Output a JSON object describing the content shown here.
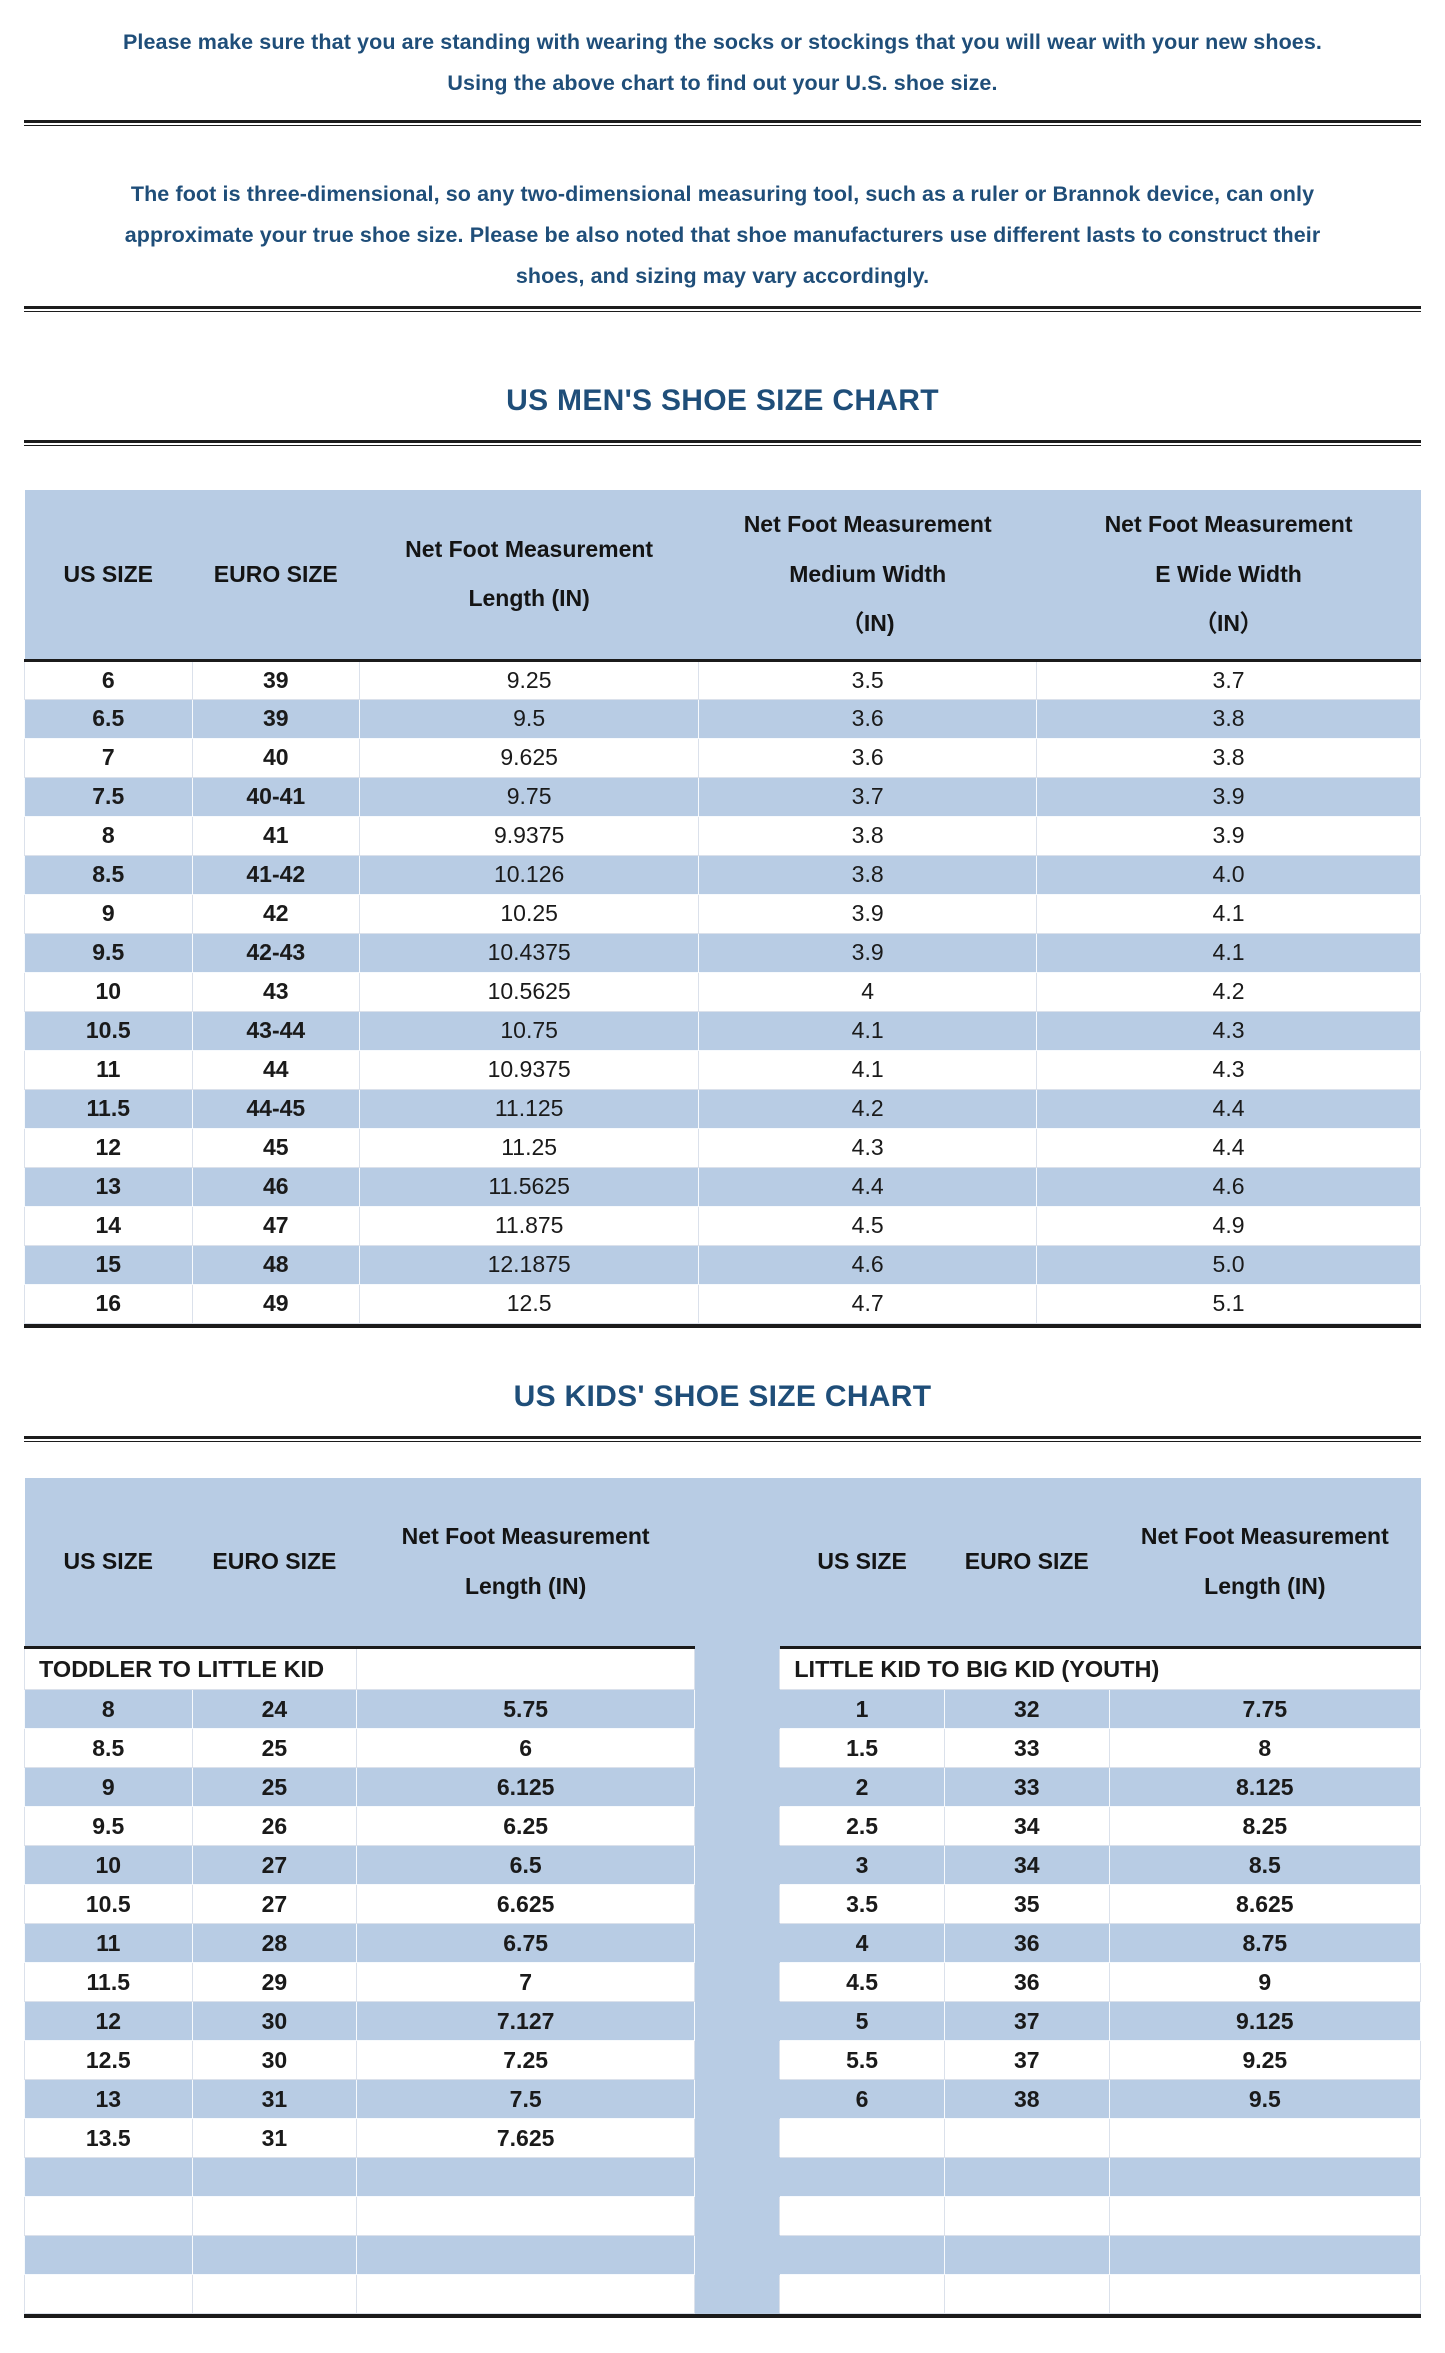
{
  "intro": {
    "lines": [
      "Please make sure that you are standing with wearing the socks or stockings that you will wear with your new shoes.",
      "Using the above chart to find out your U.S. shoe size."
    ]
  },
  "note": {
    "lines": [
      "The foot is three-dimensional, so any two-dimensional measuring tool, such as a ruler or Brannok device, can only",
      "approximate your true shoe size. Please be also noted that shoe manufacturers use different lasts to construct their",
      "shoes, and sizing may vary accordingly."
    ]
  },
  "colors": {
    "accent_text": "#1f4e79",
    "stripe_blue": "#b8cce4",
    "rule_black": "#1c1c1c"
  },
  "mens_chart": {
    "title": "US MEN'S SHOE SIZE CHART",
    "columns": [
      "US SIZE",
      "EURO SIZE",
      "Net Foot Measurement\nLength (IN)",
      "Net Foot Measurement\nMedium Width\n（IN)",
      "Net Foot Measurement\nE Wide Width\n（IN）"
    ],
    "rows": [
      [
        "6",
        "39",
        "9.25",
        "3.5",
        "3.7"
      ],
      [
        "6.5",
        "39",
        "9.5",
        "3.6",
        "3.8"
      ],
      [
        "7",
        "40",
        "9.625",
        "3.6",
        "3.8"
      ],
      [
        "7.5",
        "40-41",
        "9.75",
        "3.7",
        "3.9"
      ],
      [
        "8",
        "41",
        "9.9375",
        "3.8",
        "3.9"
      ],
      [
        "8.5",
        "41-42",
        "10.126",
        "3.8",
        "4.0"
      ],
      [
        "9",
        "42",
        "10.25",
        "3.9",
        "4.1"
      ],
      [
        "9.5",
        "42-43",
        "10.4375",
        "3.9",
        "4.1"
      ],
      [
        "10",
        "43",
        "10.5625",
        "4",
        "4.2"
      ],
      [
        "10.5",
        "43-44",
        "10.75",
        "4.1",
        "4.3"
      ],
      [
        "11",
        "44",
        "10.9375",
        "4.1",
        "4.3"
      ],
      [
        "11.5",
        "44-45",
        "11.125",
        "4.2",
        "4.4"
      ],
      [
        "12",
        "45",
        "11.25",
        "4.3",
        "4.4"
      ],
      [
        "13",
        "46",
        "11.5625",
        "4.4",
        "4.6"
      ],
      [
        "14",
        "47",
        "11.875",
        "4.5",
        "4.9"
      ],
      [
        "15",
        "48",
        "12.1875",
        "4.6",
        "5.0"
      ],
      [
        "16",
        "49",
        "12.5",
        "4.7",
        "5.1"
      ]
    ]
  },
  "kids_chart": {
    "title": "US KIDS' SHOE SIZE CHART",
    "columns_left": [
      "US SIZE",
      "EURO SIZE",
      "Net Foot Measurement\nLength (IN)"
    ],
    "columns_right": [
      "US SIZE",
      "EURO SIZE",
      "Net Foot Measurement\nLength (IN)"
    ],
    "group_left": "TODDLER TO LITTLE KID",
    "group_right": "LITTLE KID TO BIG KID (YOUTH)",
    "rows": [
      {
        "left": [
          "8",
          "24",
          "5.75"
        ],
        "right": [
          "1",
          "32",
          "7.75"
        ]
      },
      {
        "left": [
          "8.5",
          "25",
          "6"
        ],
        "right": [
          "1.5",
          "33",
          "8"
        ]
      },
      {
        "left": [
          "9",
          "25",
          "6.125"
        ],
        "right": [
          "2",
          "33",
          "8.125"
        ]
      },
      {
        "left": [
          "9.5",
          "26",
          "6.25"
        ],
        "right": [
          "2.5",
          "34",
          "8.25"
        ]
      },
      {
        "left": [
          "10",
          "27",
          "6.5"
        ],
        "right": [
          "3",
          "34",
          "8.5"
        ]
      },
      {
        "left": [
          "10.5",
          "27",
          "6.625"
        ],
        "right": [
          "3.5",
          "35",
          "8.625"
        ]
      },
      {
        "left": [
          "11",
          "28",
          "6.75"
        ],
        "right": [
          "4",
          "36",
          "8.75"
        ]
      },
      {
        "left": [
          "11.5",
          "29",
          "7"
        ],
        "right": [
          "4.5",
          "36",
          "9"
        ]
      },
      {
        "left": [
          "12",
          "30",
          "7.127"
        ],
        "right": [
          "5",
          "37",
          "9.125"
        ]
      },
      {
        "left": [
          "12.5",
          "30",
          "7.25"
        ],
        "right": [
          "5.5",
          "37",
          "9.25"
        ]
      },
      {
        "left": [
          "13",
          "31",
          "7.5"
        ],
        "right": [
          "6",
          "38",
          "9.5"
        ]
      },
      {
        "left": [
          "13.5",
          "31",
          "7.625"
        ],
        "right": [
          "",
          "",
          ""
        ]
      }
    ],
    "empty_rows": 4
  }
}
